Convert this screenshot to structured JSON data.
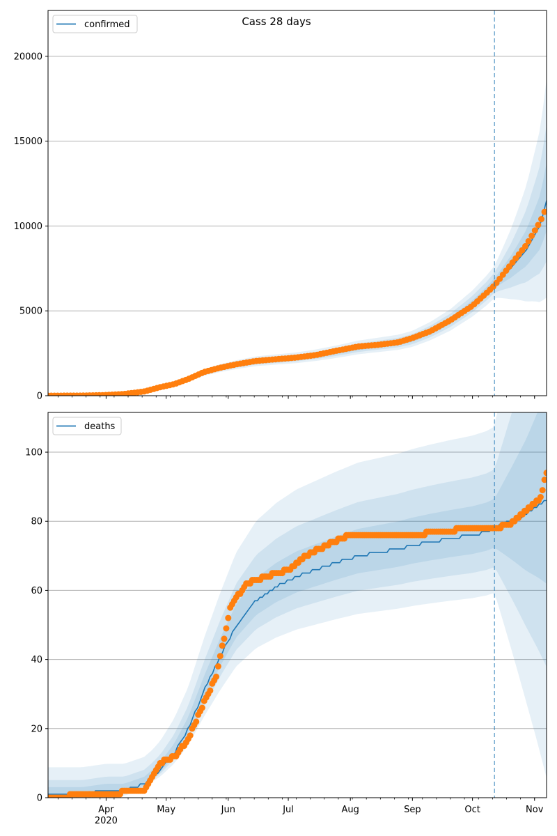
{
  "chart_data": [
    {
      "type": "line",
      "title": "Cass 28 days",
      "legend": {
        "label": "confirmed",
        "placement": "top-left"
      },
      "grid": "horizontal",
      "xlim": [
        "2020-03-03",
        "2020-11-07"
      ],
      "ylim": [
        0,
        22700
      ],
      "yticks": [
        0,
        5000,
        10000,
        15000,
        20000
      ],
      "forecast_start": "2020-10-12",
      "series": [
        {
          "role": "model",
          "x": [
            "2020-03-03",
            "2020-03-20",
            "2020-04-01",
            "2020-04-10",
            "2020-04-20",
            "2020-04-28",
            "2020-05-05",
            "2020-05-12",
            "2020-05-20",
            "2020-05-28",
            "2020-06-05",
            "2020-06-15",
            "2020-06-25",
            "2020-07-05",
            "2020-07-15",
            "2020-07-25",
            "2020-08-05",
            "2020-08-15",
            "2020-08-25",
            "2020-09-01",
            "2020-09-10",
            "2020-09-20",
            "2020-10-01",
            "2020-10-08",
            "2020-10-12",
            "2020-10-20",
            "2020-10-28",
            "2020-11-04",
            "2020-11-07"
          ],
          "y": [
            0,
            5,
            30,
            80,
            200,
            400,
            650,
            950,
            1350,
            1600,
            1800,
            2000,
            2100,
            2200,
            2350,
            2550,
            2800,
            2950,
            3100,
            3300,
            3750,
            4400,
            5350,
            6100,
            6600,
            7500,
            8600,
            10100,
            11500
          ]
        },
        {
          "role": "observed",
          "x": [
            "2020-03-03",
            "2020-03-20",
            "2020-04-01",
            "2020-04-10",
            "2020-04-20",
            "2020-04-28",
            "2020-05-05",
            "2020-05-12",
            "2020-05-20",
            "2020-05-28",
            "2020-06-05",
            "2020-06-15",
            "2020-06-25",
            "2020-07-05",
            "2020-07-15",
            "2020-07-25",
            "2020-08-05",
            "2020-08-15",
            "2020-08-25",
            "2020-09-01",
            "2020-09-10",
            "2020-09-20",
            "2020-10-01",
            "2020-10-08",
            "2020-10-12",
            "2020-10-20",
            "2020-10-28",
            "2020-11-04",
            "2020-11-07"
          ],
          "y": [
            0,
            5,
            40,
            100,
            250,
            500,
            680,
            980,
            1400,
            1650,
            1850,
            2050,
            2150,
            2250,
            2400,
            2650,
            2900,
            3000,
            3150,
            3400,
            3800,
            4450,
            5300,
            6050,
            6500,
            7700,
            8900,
            10300,
            11100
          ]
        }
      ]
    },
    {
      "type": "line",
      "legend": {
        "label": "deaths",
        "placement": "top-left"
      },
      "grid": "horizontal",
      "xlim": [
        "2020-03-03",
        "2020-11-07"
      ],
      "ylim": [
        0,
        111.5
      ],
      "yticks": [
        0,
        20,
        40,
        60,
        80,
        100
      ],
      "forecast_start": "2020-10-12",
      "series": [
        {
          "role": "model",
          "x": [
            "2020-03-03",
            "2020-03-20",
            "2020-04-01",
            "2020-04-10",
            "2020-04-20",
            "2020-04-28",
            "2020-05-05",
            "2020-05-12",
            "2020-05-20",
            "2020-05-28",
            "2020-06-05",
            "2020-06-15",
            "2020-06-25",
            "2020-07-05",
            "2020-07-15",
            "2020-07-25",
            "2020-08-05",
            "2020-08-15",
            "2020-08-25",
            "2020-09-01",
            "2020-09-10",
            "2020-09-20",
            "2020-10-01",
            "2020-10-08",
            "2020-10-12",
            "2020-10-20",
            "2020-10-28",
            "2020-11-04",
            "2020-11-07"
          ],
          "y": [
            1,
            1,
            2,
            2,
            4,
            8,
            13,
            20,
            31,
            41,
            50,
            57,
            61,
            64,
            66,
            68,
            70,
            71,
            72,
            73,
            74,
            75,
            76,
            77,
            78,
            80,
            82,
            85,
            86
          ]
        },
        {
          "role": "observed",
          "x": [
            "2020-03-03",
            "2020-03-25",
            "2020-04-05",
            "2020-04-13",
            "2020-04-20",
            "2020-04-28",
            "2020-05-06",
            "2020-05-12",
            "2020-05-18",
            "2020-05-26",
            "2020-06-02",
            "2020-06-10",
            "2020-06-20",
            "2020-07-01",
            "2020-07-10",
            "2020-07-20",
            "2020-08-01",
            "2020-08-15",
            "2020-09-01",
            "2020-09-15",
            "2020-10-01",
            "2020-10-12",
            "2020-10-20",
            "2020-10-28",
            "2020-11-04",
            "2020-11-07"
          ],
          "y": [
            0,
            1,
            1,
            2,
            2,
            10,
            12,
            17,
            25,
            35,
            55,
            62,
            64,
            66,
            70,
            73,
            76,
            76,
            76,
            77,
            78,
            78,
            79,
            83,
            87,
            94
          ]
        }
      ]
    }
  ],
  "xticks": [
    {
      "label": "Apr",
      "date": "2020-04-01"
    },
    {
      "label": "May",
      "date": "2020-05-01"
    },
    {
      "label": "Jun",
      "date": "2020-06-01"
    },
    {
      "label": "Jul",
      "date": "2020-07-01"
    },
    {
      "label": "Aug",
      "date": "2020-08-01"
    },
    {
      "label": "Sep",
      "date": "2020-09-01"
    },
    {
      "label": "Oct",
      "date": "2020-10-01"
    },
    {
      "label": "Nov",
      "date": "2020-11-01"
    }
  ],
  "year_label": "2020",
  "colors": {
    "model": "#1f77b4",
    "observed": "#ff7f0e",
    "band": "#1f77b4",
    "grid": "#b0b0b0"
  }
}
